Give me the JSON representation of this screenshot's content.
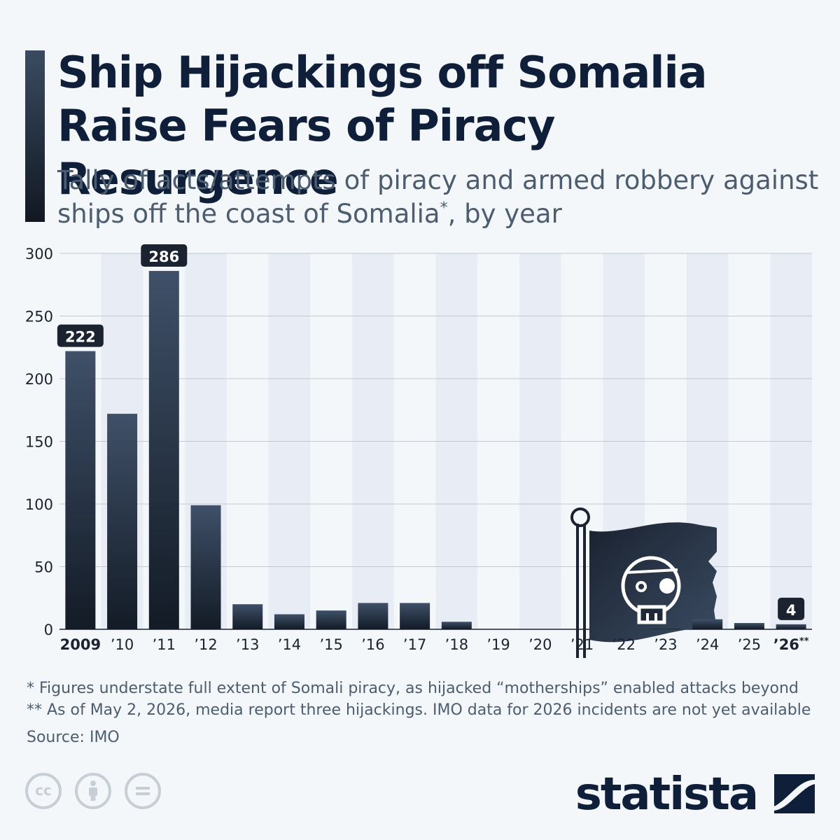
{
  "header": {
    "title": "Ship Hijackings off Somalia Raise Fears of Piracy Resurgence",
    "subtitle_main": "Tally of acts/attempts of piracy and armed robbery against ships off the coast of Somalia",
    "subtitle_sup": "*",
    "subtitle_end": ", by year"
  },
  "chart_data": {
    "type": "bar",
    "categories": [
      "2009",
      "’10",
      "’11",
      "’12",
      "’13",
      "’14",
      "’15",
      "’16",
      "’17",
      "’18",
      "’19",
      "’20",
      "’21",
      "’22",
      "’23",
      "’24",
      "’25",
      "’26**"
    ],
    "values": [
      222,
      172,
      286,
      99,
      20,
      12,
      15,
      21,
      21,
      6,
      0,
      0,
      0,
      0,
      1,
      8,
      5,
      4
    ],
    "bold_categories": [
      "2009",
      "’26**"
    ],
    "data_labels": [
      {
        "category": "2009",
        "label": "222"
      },
      {
        "category": "’11",
        "label": "286"
      },
      {
        "category": "’26**",
        "label": "4"
      }
    ],
    "yticks": [
      0,
      50,
      100,
      150,
      200,
      250,
      300
    ],
    "ylim": [
      0,
      300
    ],
    "grid": true,
    "title": "",
    "xlabel": "",
    "ylabel": "",
    "colors": {
      "bar_top": "#3f5068",
      "bar_bottom": "#131b26",
      "band": "#e8edf5",
      "grid": "#c2c9d2",
      "label_box": "#1b2330",
      "axis_text": "#1b2330"
    },
    "illustration": "pirate-flag-icon"
  },
  "footnotes": {
    "note1": "*   Figures understate full extent of Somali piracy, as hijacked “motherships” enabled attacks beyond",
    "note2": "** As of May 2, 2026, media report three hijackings. IMO data for 2026 incidents are not yet available",
    "source": "Source: IMO"
  },
  "license_icons": [
    "cc-icon",
    "by-icon",
    "equals-icon"
  ],
  "brand": {
    "name": "statista",
    "icon": "statista-logo-icon"
  }
}
